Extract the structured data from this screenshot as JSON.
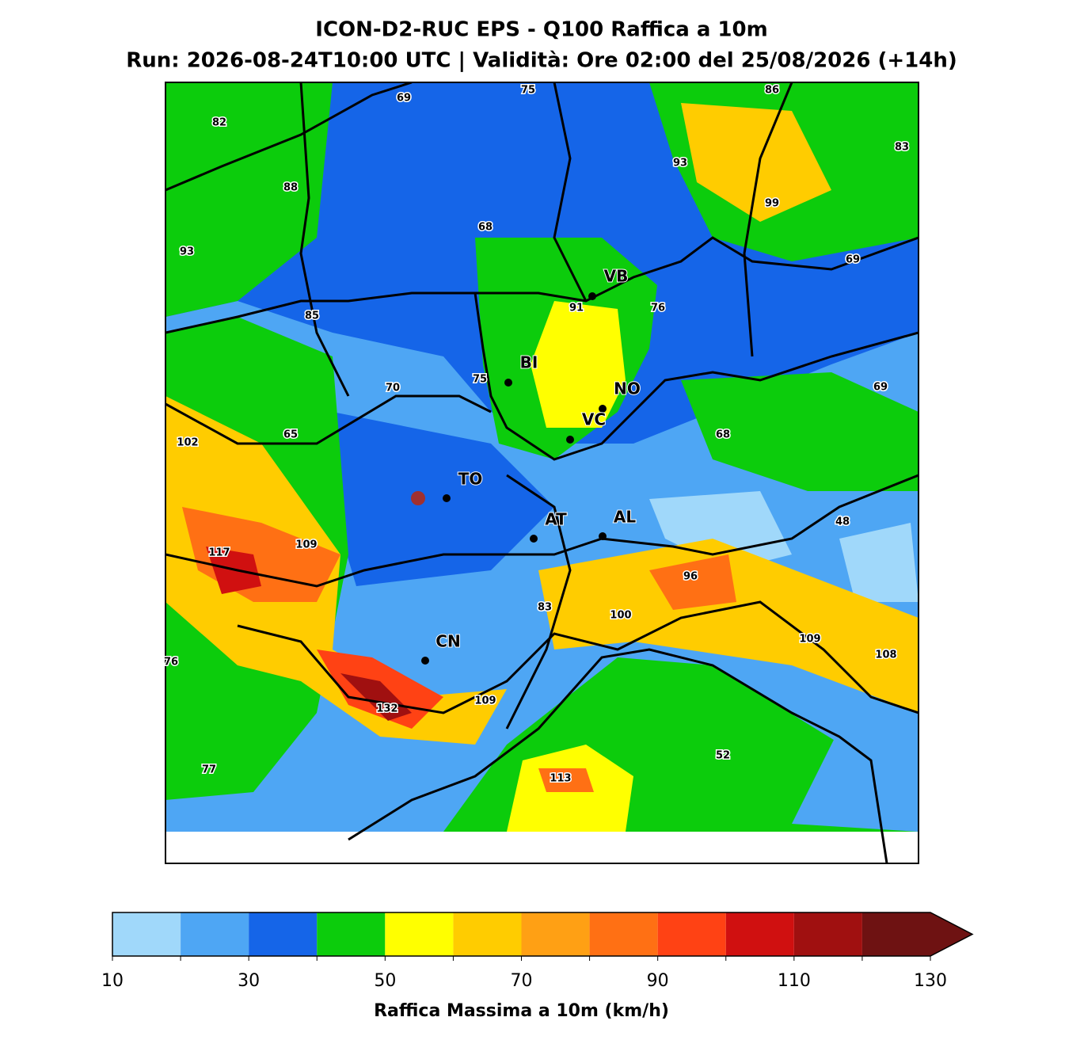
{
  "title": "ICON-D2-RUC EPS - Q100 Raffica a 10m",
  "subtitle": "Run: 2026-08-24T10:00 UTC | Validità: Ore 02:00 del 25/08/2026 (+14h)",
  "cities": [
    {
      "label": "VB"
    },
    {
      "label": "BI"
    },
    {
      "label": "NO"
    },
    {
      "label": "VC"
    },
    {
      "label": "TO"
    },
    {
      "label": "AT"
    },
    {
      "label": "AL"
    },
    {
      "label": "CN"
    }
  ],
  "point_labels": [
    69,
    75,
    86,
    82,
    83,
    93,
    88,
    99,
    68,
    93,
    69,
    91,
    76,
    85,
    75,
    70,
    69,
    102,
    65,
    68,
    48,
    117,
    109,
    96,
    83,
    100,
    109,
    108,
    76,
    132,
    109,
    52,
    77,
    113
  ],
  "colorbar": {
    "levels": [
      10,
      20,
      30,
      40,
      50,
      60,
      70,
      80,
      90,
      100,
      110,
      120,
      130
    ],
    "colors": [
      "#a0d8fa",
      "#4ea6f4",
      "#1565e8",
      "#0ccc0c",
      "#ffff00",
      "#ffcc00",
      "#ffa014",
      "#ff7014",
      "#ff4214",
      "#d01010",
      "#a01010",
      "#6e1212"
    ],
    "ticks": [
      10,
      30,
      50,
      70,
      90,
      110,
      130
    ],
    "label": "Raffica Massima a 10m (km/h)"
  }
}
